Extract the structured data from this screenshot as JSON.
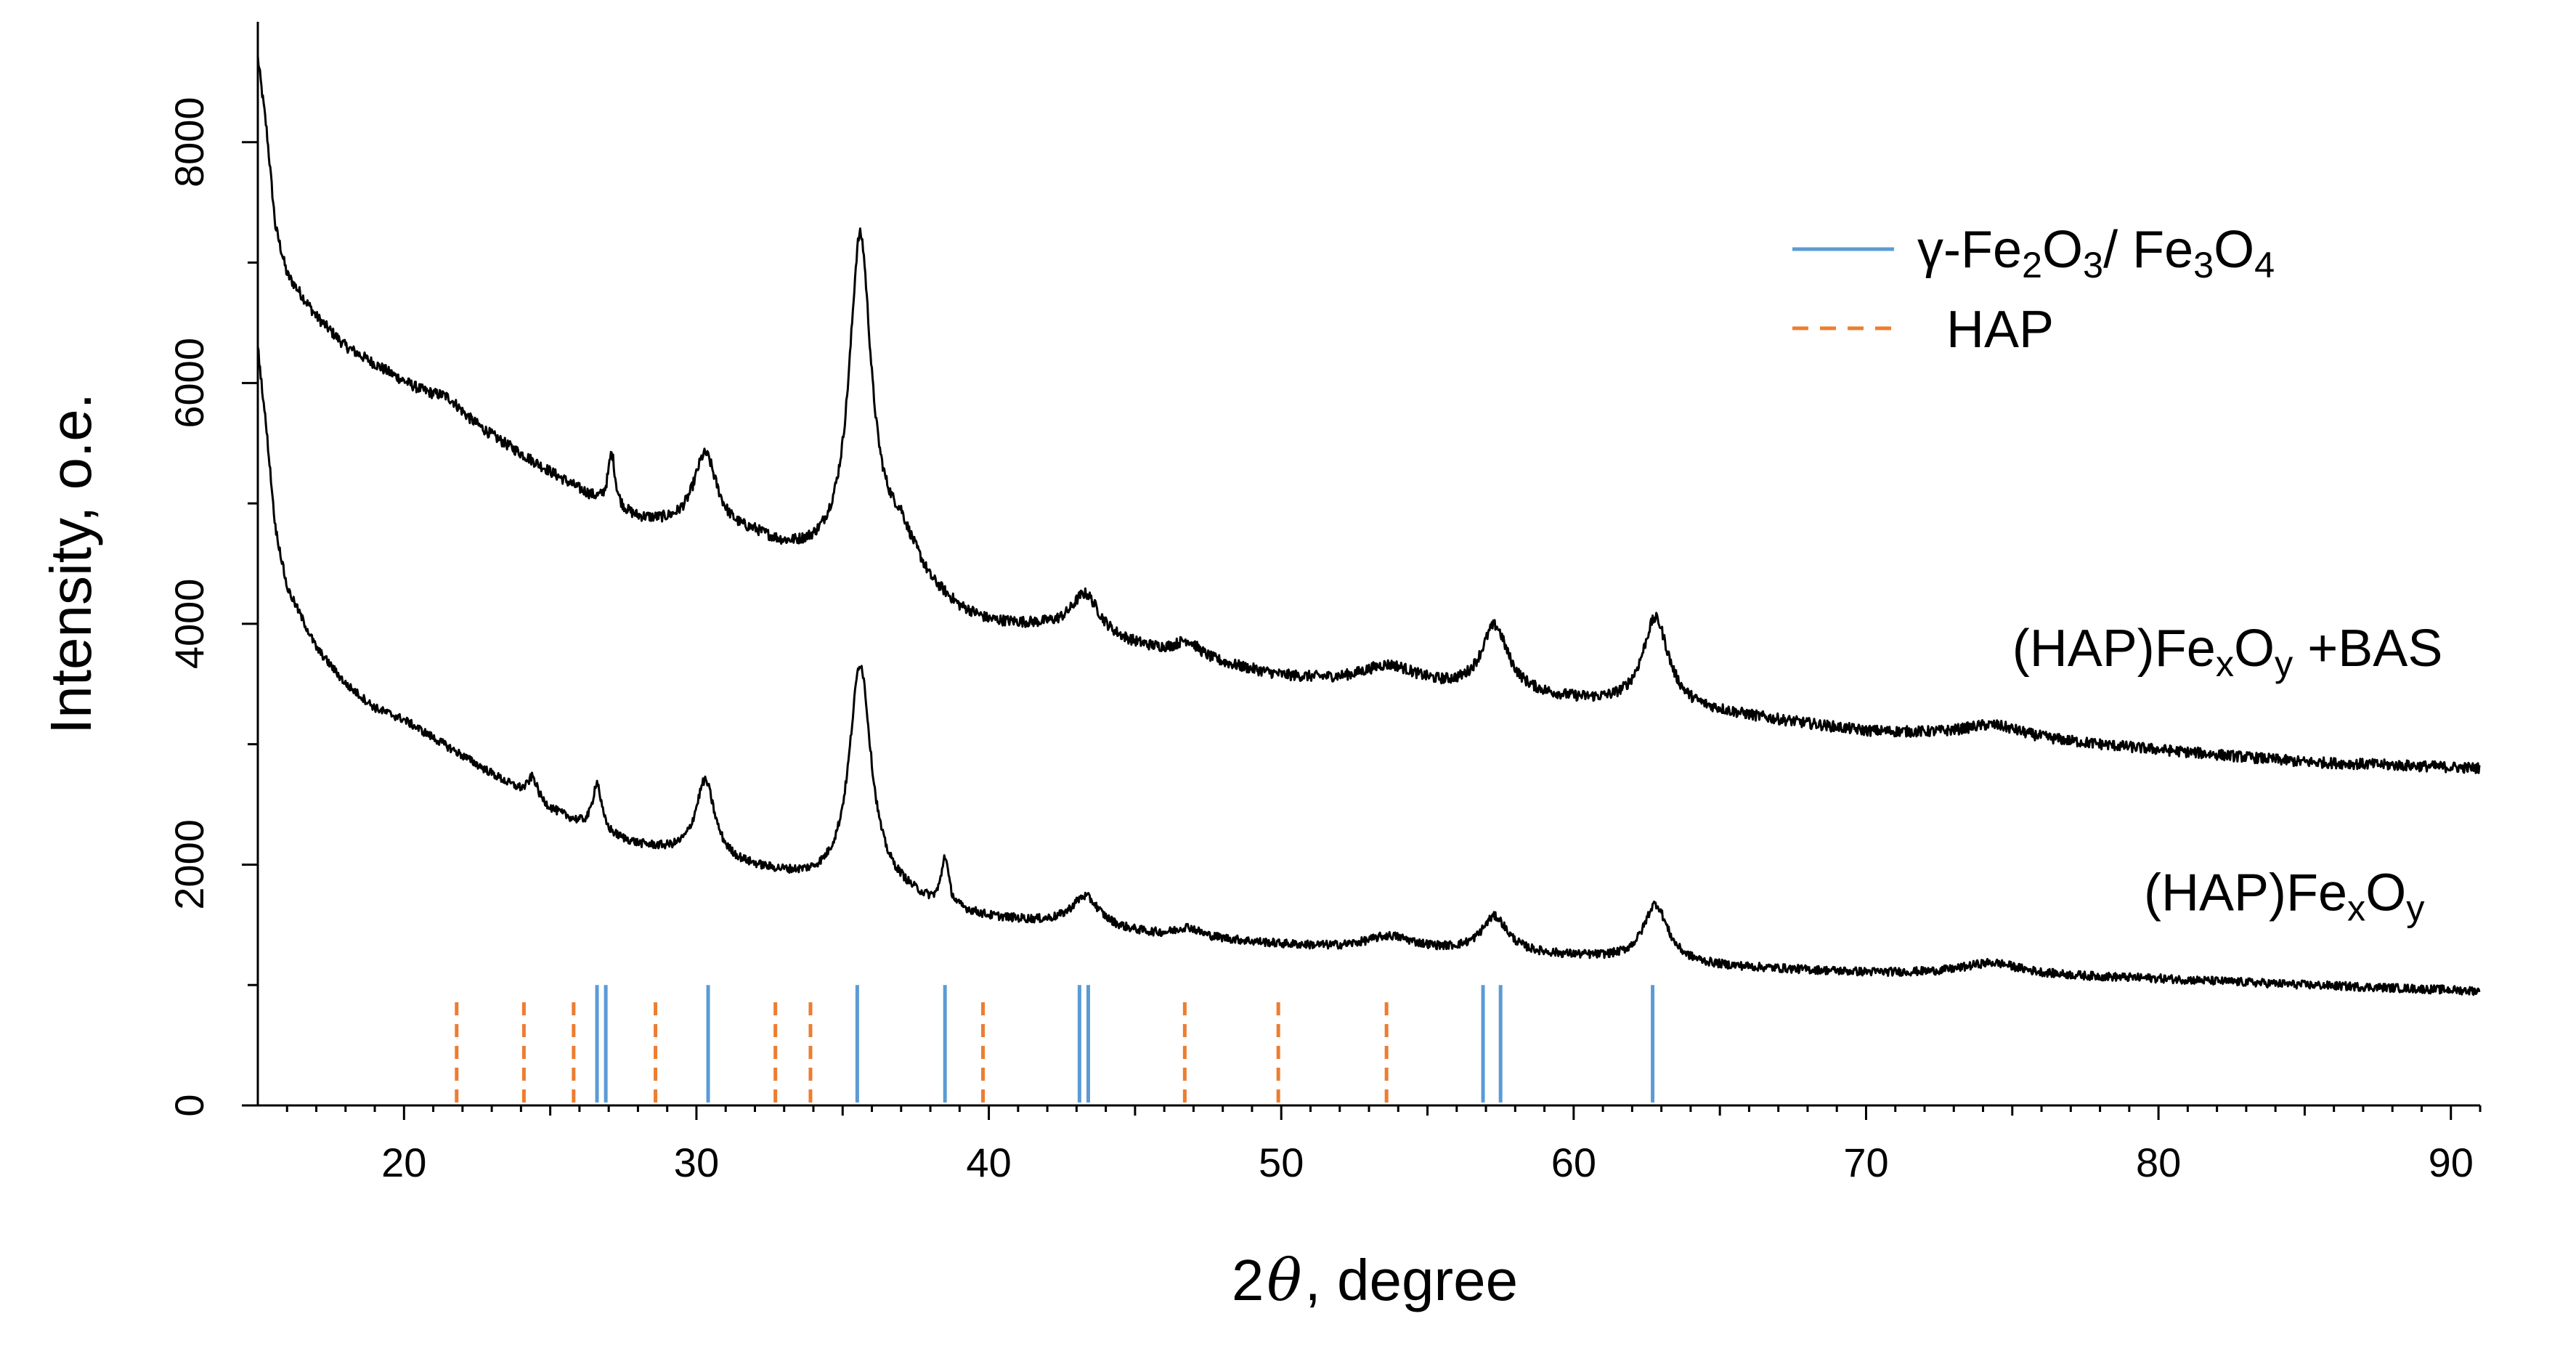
{
  "chart_data": {
    "type": "line",
    "xlabel": {
      "prefix": "2",
      "symbol": "θ",
      "suffix": ", degree"
    },
    "ylabel": "Intensity, o.e.",
    "xlim": [
      15,
      91
    ],
    "ylim": [
      0,
      9000
    ],
    "xticks": [
      20,
      30,
      40,
      50,
      60,
      70,
      80,
      90
    ],
    "yticks": [
      0,
      2000,
      4000,
      6000,
      8000
    ],
    "legend": {
      "position": "top-right",
      "entries": [
        {
          "name": "γ-Fe2O3/ Fe3O4",
          "parts": [
            [
              "γ-Fe",
              ""
            ],
            [
              "2",
              "sub"
            ],
            [
              "O",
              ""
            ],
            [
              "3",
              "sub"
            ],
            [
              "/ Fe",
              ""
            ],
            [
              "3",
              "sub"
            ],
            [
              "O",
              ""
            ],
            [
              "4",
              "sub"
            ]
          ],
          "style": "solid",
          "color": "#5b9bd5"
        },
        {
          "name": "HAP",
          "parts": [
            [
              "HAP",
              ""
            ]
          ],
          "style": "dashed",
          "color": "#ed7d31"
        }
      ]
    },
    "series": [
      {
        "name": "(HAP)FexOy +BAS",
        "parts": [
          [
            "(HAP)Fe",
            ""
          ],
          [
            "x",
            "sub"
          ],
          [
            "O",
            ""
          ],
          [
            "y",
            "sub"
          ],
          [
            " +BAS",
            ""
          ]
        ],
        "label_at": [
          75,
          3650
        ],
        "color": "#000000",
        "baseline": [
          [
            15,
            8700
          ],
          [
            15.3,
            8100
          ],
          [
            15.6,
            7300
          ],
          [
            16,
            6900
          ],
          [
            17,
            6550
          ],
          [
            18,
            6300
          ],
          [
            19,
            6150
          ],
          [
            20,
            6000
          ],
          [
            21,
            5850
          ],
          [
            22,
            5700
          ],
          [
            23,
            5550
          ],
          [
            24,
            5400
          ],
          [
            25,
            5250
          ],
          [
            26,
            5100
          ],
          [
            27,
            4950
          ],
          [
            28,
            4850
          ],
          [
            29,
            4800
          ],
          [
            30,
            4750
          ],
          [
            32,
            4700
          ],
          [
            33,
            4600
          ],
          [
            34,
            4550
          ],
          [
            35,
            4550
          ],
          [
            36,
            4600
          ],
          [
            37,
            4700
          ],
          [
            38,
            4300
          ],
          [
            39,
            4100
          ],
          [
            40,
            4000
          ],
          [
            42,
            3950
          ],
          [
            44,
            3850
          ],
          [
            46,
            3750
          ],
          [
            48,
            3650
          ],
          [
            50,
            3550
          ],
          [
            52,
            3500
          ],
          [
            55,
            3450
          ],
          [
            58,
            3400
          ],
          [
            60,
            3350
          ],
          [
            62,
            3300
          ],
          [
            65,
            3250
          ],
          [
            70,
            3100
          ],
          [
            75,
            3050
          ],
          [
            80,
            2950
          ],
          [
            85,
            2850
          ],
          [
            91,
            2800
          ]
        ],
        "peaks": [
          [
            21.5,
            100,
            0.6
          ],
          [
            27.1,
            450,
            0.15
          ],
          [
            30.3,
            650,
            0.5
          ],
          [
            35.6,
            2650,
            0.45
          ],
          [
            43.3,
            350,
            0.6
          ],
          [
            46.8,
            130,
            0.5
          ],
          [
            53.7,
            170,
            1.2
          ],
          [
            57.3,
            550,
            0.55
          ],
          [
            62.8,
            750,
            0.55
          ],
          [
            74.3,
            100,
            1.2
          ]
        ],
        "noise": 45
      },
      {
        "name": "(HAP)FexOy",
        "parts": [
          [
            "(HAP)Fe",
            ""
          ],
          [
            "x",
            "sub"
          ],
          [
            "O",
            ""
          ],
          [
            "y",
            "sub"
          ]
        ],
        "label_at": [
          79.5,
          1620
        ],
        "color": "#000000",
        "baseline": [
          [
            15,
            6300
          ],
          [
            15.3,
            5600
          ],
          [
            15.6,
            4800
          ],
          [
            16,
            4300
          ],
          [
            17,
            3800
          ],
          [
            18,
            3500
          ],
          [
            19,
            3300
          ],
          [
            20,
            3200
          ],
          [
            21,
            3050
          ],
          [
            22,
            2900
          ],
          [
            23,
            2750
          ],
          [
            24,
            2600
          ],
          [
            25,
            2450
          ],
          [
            26,
            2330
          ],
          [
            27,
            2230
          ],
          [
            28,
            2150
          ],
          [
            29,
            2100
          ],
          [
            30,
            2050
          ],
          [
            32,
            1950
          ],
          [
            34,
            1850
          ],
          [
            36,
            1800
          ],
          [
            37,
            1750
          ],
          [
            38,
            1650
          ],
          [
            40,
            1550
          ],
          [
            42,
            1500
          ],
          [
            44,
            1450
          ],
          [
            46,
            1400
          ],
          [
            48,
            1370
          ],
          [
            50,
            1330
          ],
          [
            52,
            1300
          ],
          [
            55,
            1280
          ],
          [
            58,
            1250
          ],
          [
            60,
            1230
          ],
          [
            62,
            1200
          ],
          [
            65,
            1150
          ],
          [
            70,
            1100
          ],
          [
            75,
            1080
          ],
          [
            80,
            1050
          ],
          [
            85,
            1000
          ],
          [
            91,
            950
          ]
        ],
        "peaks": [
          [
            24.4,
            180,
            0.2
          ],
          [
            26.6,
            400,
            0.18
          ],
          [
            30.3,
            650,
            0.4
          ],
          [
            35.6,
            1850,
            0.45
          ],
          [
            38.5,
            400,
            0.15
          ],
          [
            43.3,
            260,
            0.6
          ],
          [
            46.8,
            80,
            0.5
          ],
          [
            53.7,
            110,
            1
          ],
          [
            57.3,
            300,
            0.55
          ],
          [
            62.8,
            480,
            0.5
          ],
          [
            74.3,
            100,
            1.2
          ]
        ],
        "noise": 35
      }
    ],
    "reference_lines": {
      "gamma_fe2o3_fe3o4": {
        "color": "#5b9bd5",
        "style": "solid",
        "top": 1000,
        "positions": [
          26.6,
          26.9,
          30.4,
          35.5,
          38.5,
          43.1,
          43.4,
          56.9,
          57.5,
          62.7
        ]
      },
      "hap": {
        "color": "#ed7d31",
        "style": "dashed",
        "top": 870,
        "positions": [
          21.8,
          24.1,
          25.8,
          28.6,
          32.7,
          33.9,
          39.8,
          46.7,
          49.9,
          53.6
        ]
      }
    }
  }
}
